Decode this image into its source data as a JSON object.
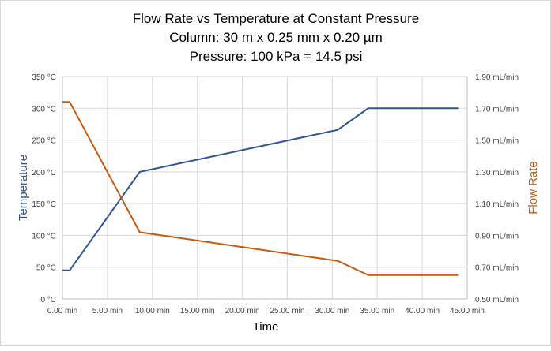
{
  "chart_data": {
    "type": "line",
    "title_lines": [
      "Flow Rate vs Temperature at Constant Pressure",
      "Column:  30 m x 0.25 mm x 0.20 µm",
      "Pressure:  100 kPa = 14.5 psi"
    ],
    "xlabel": "Time",
    "ylabel": "Temperature",
    "y2label": "Flow Rate",
    "xlim": [
      0,
      45
    ],
    "ylim": [
      0,
      350
    ],
    "y2lim": [
      0.5,
      1.9
    ],
    "x_ticks": [
      "0.00 min",
      "5.00 min",
      "10.00 min",
      "15.00 min",
      "20.00 min",
      "25.00 min",
      "30.00 min",
      "35.00 min",
      "40.00 min",
      "45.00 min"
    ],
    "y_ticks": [
      "0 °C",
      "50 °C",
      "100 °C",
      "150 °C",
      "200 °C",
      "250 °C",
      "300 °C",
      "350 °C"
    ],
    "y2_ticks": [
      "0.50 mL/min",
      "0.70 mL/min",
      "0.90 mL/min",
      "1.10 mL/min",
      "1.30 mL/min",
      "1.50 mL/min",
      "1.70 mL/min",
      "1.90 mL/min"
    ],
    "grid": true,
    "series": [
      {
        "axis": "left",
        "color": "#2f5597",
        "x": [
          0,
          0.8,
          8.6,
          30.6,
          34.0,
          44.0
        ],
        "y": [
          45,
          45,
          200,
          266,
          300,
          300
        ]
      },
      {
        "axis": "right",
        "color": "#c55a11",
        "x": [
          0,
          0.8,
          8.6,
          30.6,
          34.0,
          44.0
        ],
        "y": [
          1.74,
          1.74,
          0.92,
          0.74,
          0.65,
          0.65
        ]
      }
    ]
  }
}
